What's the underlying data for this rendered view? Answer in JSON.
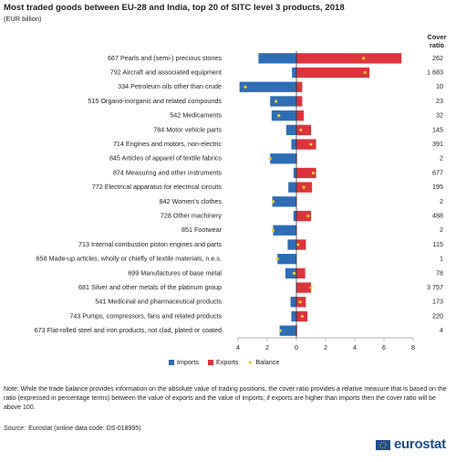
{
  "chart_data": {
    "type": "diverging-bar",
    "title": "Most traded goods between EU-28 and India, top 20 of SITC level 3 products, 2018",
    "subtitle": "(EUR billion)",
    "categories": [
      "667 Pearls and (semi-) precious stones",
      "792 Aircraft and associated equipment",
      "334 Petroleum oils other than crude",
      "515 Organo-inorganic and related compounds",
      "542 Medicaments",
      "784 Motor vehicle parts",
      "714 Engines and motors, non-electric",
      "845 Articles of apparel of textile fabrics",
      "874 Measuring and other instruments",
      "772 Electrical apparatus for electrical circuits",
      "842 Women's clothes",
      "728 Other machinery",
      "851 Footwear",
      "713 Internal combustion piston engines and parts",
      "658 Made-up articles, wholly or chiefly of textile materials, n.e.s.",
      "699 Manufactures of base metal",
      "681 Silver and other metals of the platinum group",
      "541 Medicinal and pharmaceutical products",
      "743 Pumps, compressors, fans and related products",
      "673 Flat-rolled steel and iron products, not clad, plated or coated"
    ],
    "series": [
      {
        "name": "Imports",
        "color": "#2e6db4",
        "values": [
          -2.6,
          -0.3,
          -3.9,
          -1.8,
          -1.7,
          -0.7,
          -0.35,
          -1.8,
          -0.2,
          -0.55,
          -1.65,
          -0.2,
          -1.6,
          -0.6,
          -1.3,
          -0.75,
          -0.03,
          -0.4,
          -0.35,
          -1.15
        ]
      },
      {
        "name": "Exports",
        "color": "#dd343b",
        "values": [
          7.2,
          5.0,
          0.4,
          0.4,
          0.5,
          1.0,
          1.35,
          0.04,
          1.35,
          1.07,
          0.03,
          1.0,
          0.03,
          0.65,
          0.01,
          0.6,
          1.0,
          0.65,
          0.75,
          0.05
        ]
      },
      {
        "name": "Balance",
        "color": "#f0cf2a",
        "values": [
          4.6,
          4.7,
          -3.5,
          -1.4,
          -1.2,
          0.3,
          1.0,
          -1.8,
          1.15,
          0.5,
          -1.6,
          0.8,
          -1.6,
          0.1,
          -1.3,
          -0.15,
          1.0,
          0.25,
          0.4,
          -1.1
        ]
      }
    ],
    "xlim": [
      -4,
      8
    ],
    "xticks": [
      {
        "value": -4,
        "label": "4"
      },
      {
        "value": -2,
        "label": "2"
      },
      0,
      2,
      4,
      6,
      8
    ],
    "legend": "bottom",
    "cover_ratio": {
      "title": "Cover ratio",
      "values": [
        262,
        1683,
        10,
        23,
        32,
        145,
        391,
        2,
        677,
        195,
        2,
        488,
        2,
        115,
        1,
        78,
        3757,
        173,
        220,
        4
      ],
      "value_labels": [
        "262",
        "1 683",
        "10",
        "23",
        "32",
        "145",
        "391",
        "2",
        "677",
        "195",
        "2",
        "488",
        "2",
        "115",
        "1",
        "78",
        "3 757",
        "173",
        "220",
        "4"
      ]
    },
    "note": "Note: While the trade balance provides information on the absolute value of trading positions, the cover ratio provides a relative measure that is based on the ratio (expressed in percentage terms) between the value of exports and the value of imports; if exports are higher than imports then the cover ratio will be above 100.",
    "source_label": "Source:",
    "source": "Eurostat (online data code: DS-018995)",
    "logo": "eurostat"
  }
}
